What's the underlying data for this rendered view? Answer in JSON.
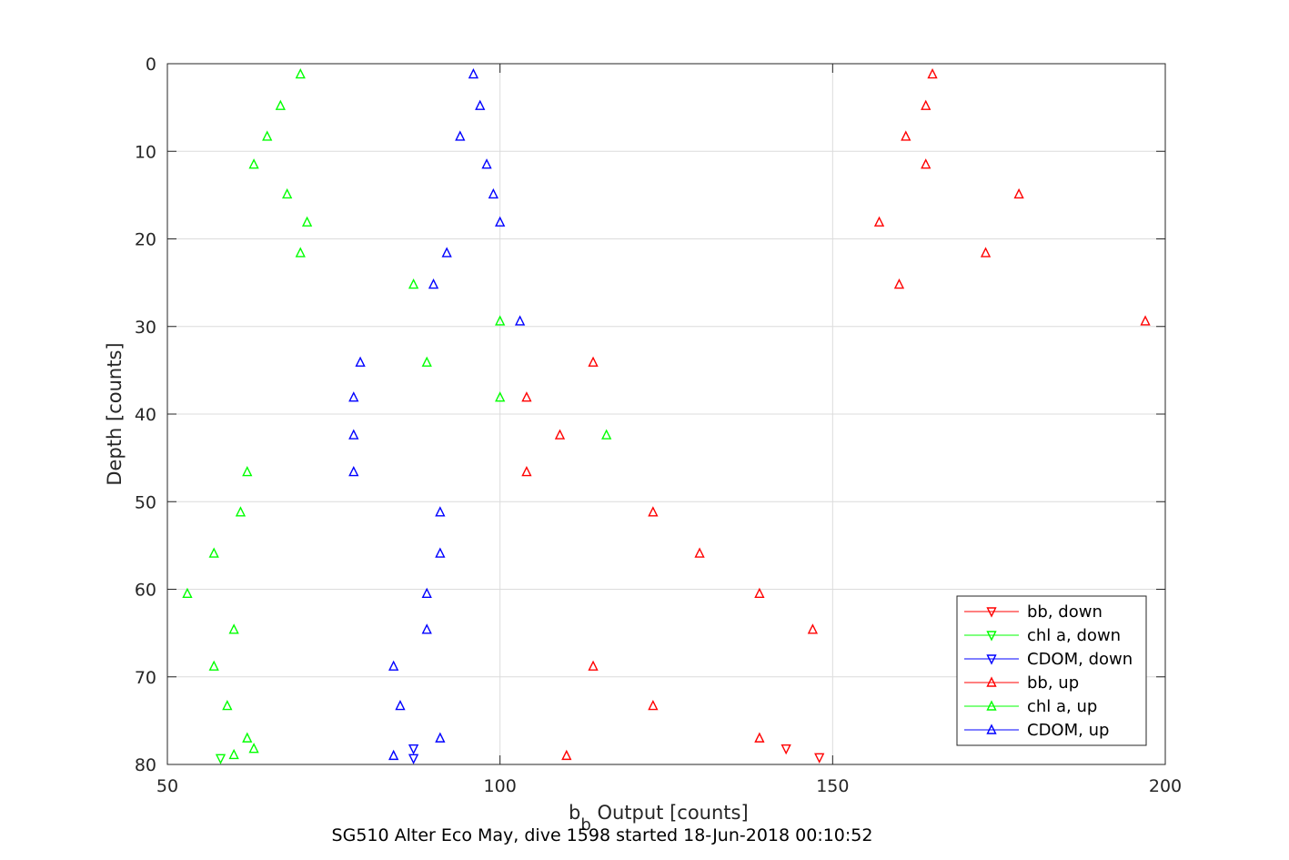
{
  "chart_data": {
    "type": "scatter",
    "xlabel_main": "b",
    "xlabel_sub": "b",
    "xlabel_rest": " Output [counts]",
    "ylabel": "Depth [counts]",
    "subtitle": "SG510 Alter Eco May, dive 1598 started 18-Jun-2018 00:10:52",
    "xlim": [
      50,
      200
    ],
    "ylim": [
      0,
      80
    ],
    "y_reversed": true,
    "xticks": [
      50,
      100,
      150,
      200
    ],
    "yticks": [
      0,
      10,
      20,
      30,
      40,
      50,
      60,
      70,
      80
    ],
    "grid": true,
    "legend_position": "bottom-right",
    "series": [
      {
        "name": "bb, down",
        "color": "#ff0000",
        "marker": "triangle-down",
        "points": [
          [
            143,
            78.2
          ],
          [
            148,
            79.2
          ]
        ]
      },
      {
        "name": "chl a, down",
        "color": "#00ff00",
        "marker": "triangle-down",
        "points": [
          [
            58,
            79.3
          ]
        ]
      },
      {
        "name": "CDOM, down",
        "color": "#0000ff",
        "marker": "triangle-down",
        "points": [
          [
            87,
            78.2
          ],
          [
            87,
            79.3
          ]
        ]
      },
      {
        "name": "bb, up",
        "color": "#ff0000",
        "marker": "triangle-up",
        "points": [
          [
            165,
            1.2
          ],
          [
            164,
            4.8
          ],
          [
            161,
            8.3
          ],
          [
            164,
            11.5
          ],
          [
            178,
            14.9
          ],
          [
            157,
            18.1
          ],
          [
            173,
            21.6
          ],
          [
            160,
            25.2
          ],
          [
            197,
            29.4
          ],
          [
            114,
            34.1
          ],
          [
            104,
            38.1
          ],
          [
            109,
            42.4
          ],
          [
            104,
            46.6
          ],
          [
            123,
            51.2
          ],
          [
            130,
            55.9
          ],
          [
            139,
            60.5
          ],
          [
            147,
            64.6
          ],
          [
            114,
            68.8
          ],
          [
            123,
            73.3
          ],
          [
            139,
            77.0
          ],
          [
            110,
            79.0
          ]
        ]
      },
      {
        "name": "chl a, up",
        "color": "#00ff00",
        "marker": "triangle-up",
        "points": [
          [
            70,
            1.2
          ],
          [
            67,
            4.8
          ],
          [
            65,
            8.3
          ],
          [
            63,
            11.5
          ],
          [
            68,
            14.9
          ],
          [
            71,
            18.1
          ],
          [
            70,
            21.6
          ],
          [
            87,
            25.2
          ],
          [
            100,
            29.4
          ],
          [
            89,
            34.1
          ],
          [
            100,
            38.1
          ],
          [
            116,
            42.4
          ],
          [
            62,
            46.6
          ],
          [
            61,
            51.2
          ],
          [
            57,
            55.9
          ],
          [
            53,
            60.5
          ],
          [
            60,
            64.6
          ],
          [
            57,
            68.8
          ],
          [
            59,
            73.3
          ],
          [
            62,
            77.0
          ],
          [
            63,
            78.2
          ],
          [
            60,
            78.9
          ]
        ]
      },
      {
        "name": "CDOM, up",
        "color": "#0000ff",
        "marker": "triangle-up",
        "points": [
          [
            96,
            1.2
          ],
          [
            97,
            4.8
          ],
          [
            94,
            8.3
          ],
          [
            98,
            11.5
          ],
          [
            99,
            14.9
          ],
          [
            100,
            18.1
          ],
          [
            92,
            21.6
          ],
          [
            90,
            25.2
          ],
          [
            103,
            29.4
          ],
          [
            79,
            34.1
          ],
          [
            78,
            38.1
          ],
          [
            78,
            42.4
          ],
          [
            78,
            46.6
          ],
          [
            91,
            51.2
          ],
          [
            91,
            55.9
          ],
          [
            89,
            60.5
          ],
          [
            89,
            64.6
          ],
          [
            84,
            68.8
          ],
          [
            85,
            73.3
          ],
          [
            91,
            77.0
          ],
          [
            84,
            79.0
          ]
        ]
      }
    ]
  }
}
